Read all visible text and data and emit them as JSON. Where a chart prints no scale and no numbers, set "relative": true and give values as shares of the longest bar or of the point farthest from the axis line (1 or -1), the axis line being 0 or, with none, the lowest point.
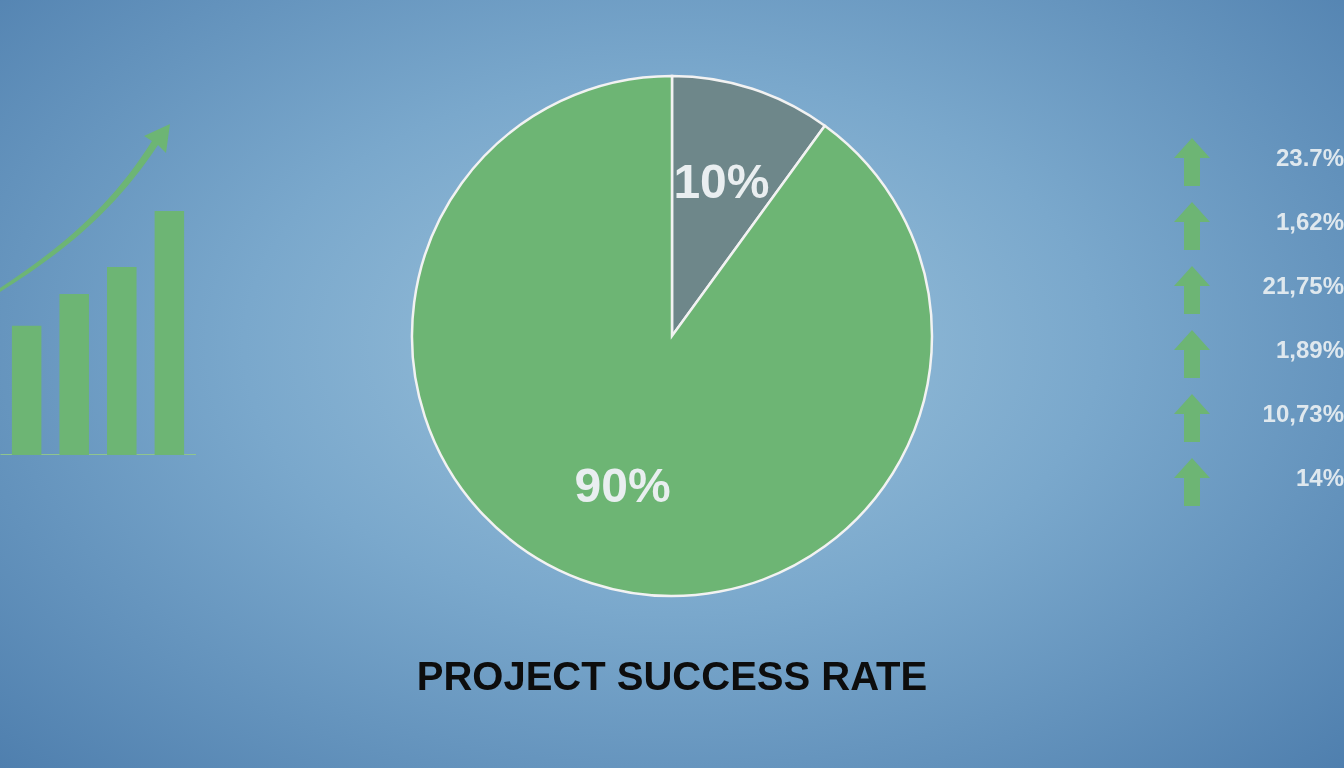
{
  "chart_data": [
    {
      "type": "bar",
      "relative": true,
      "categories": [
        null,
        null,
        null,
        null
      ],
      "values": [
        0.53,
        0.66,
        0.77,
        1
      ],
      "color": "#6db574"
    },
    {
      "type": "pie",
      "title": "PROJECT SUCCESS RATE",
      "categories": [
        null,
        null
      ],
      "values": [
        10,
        90
      ],
      "colors": [
        "#6e878a",
        "#6db574"
      ],
      "value_labels": [
        "10%",
        "90%"
      ],
      "annotations": [
        "23.7%",
        "1,62%",
        "21,75%",
        "1,89%",
        "10,73%",
        "14%"
      ]
    }
  ]
}
